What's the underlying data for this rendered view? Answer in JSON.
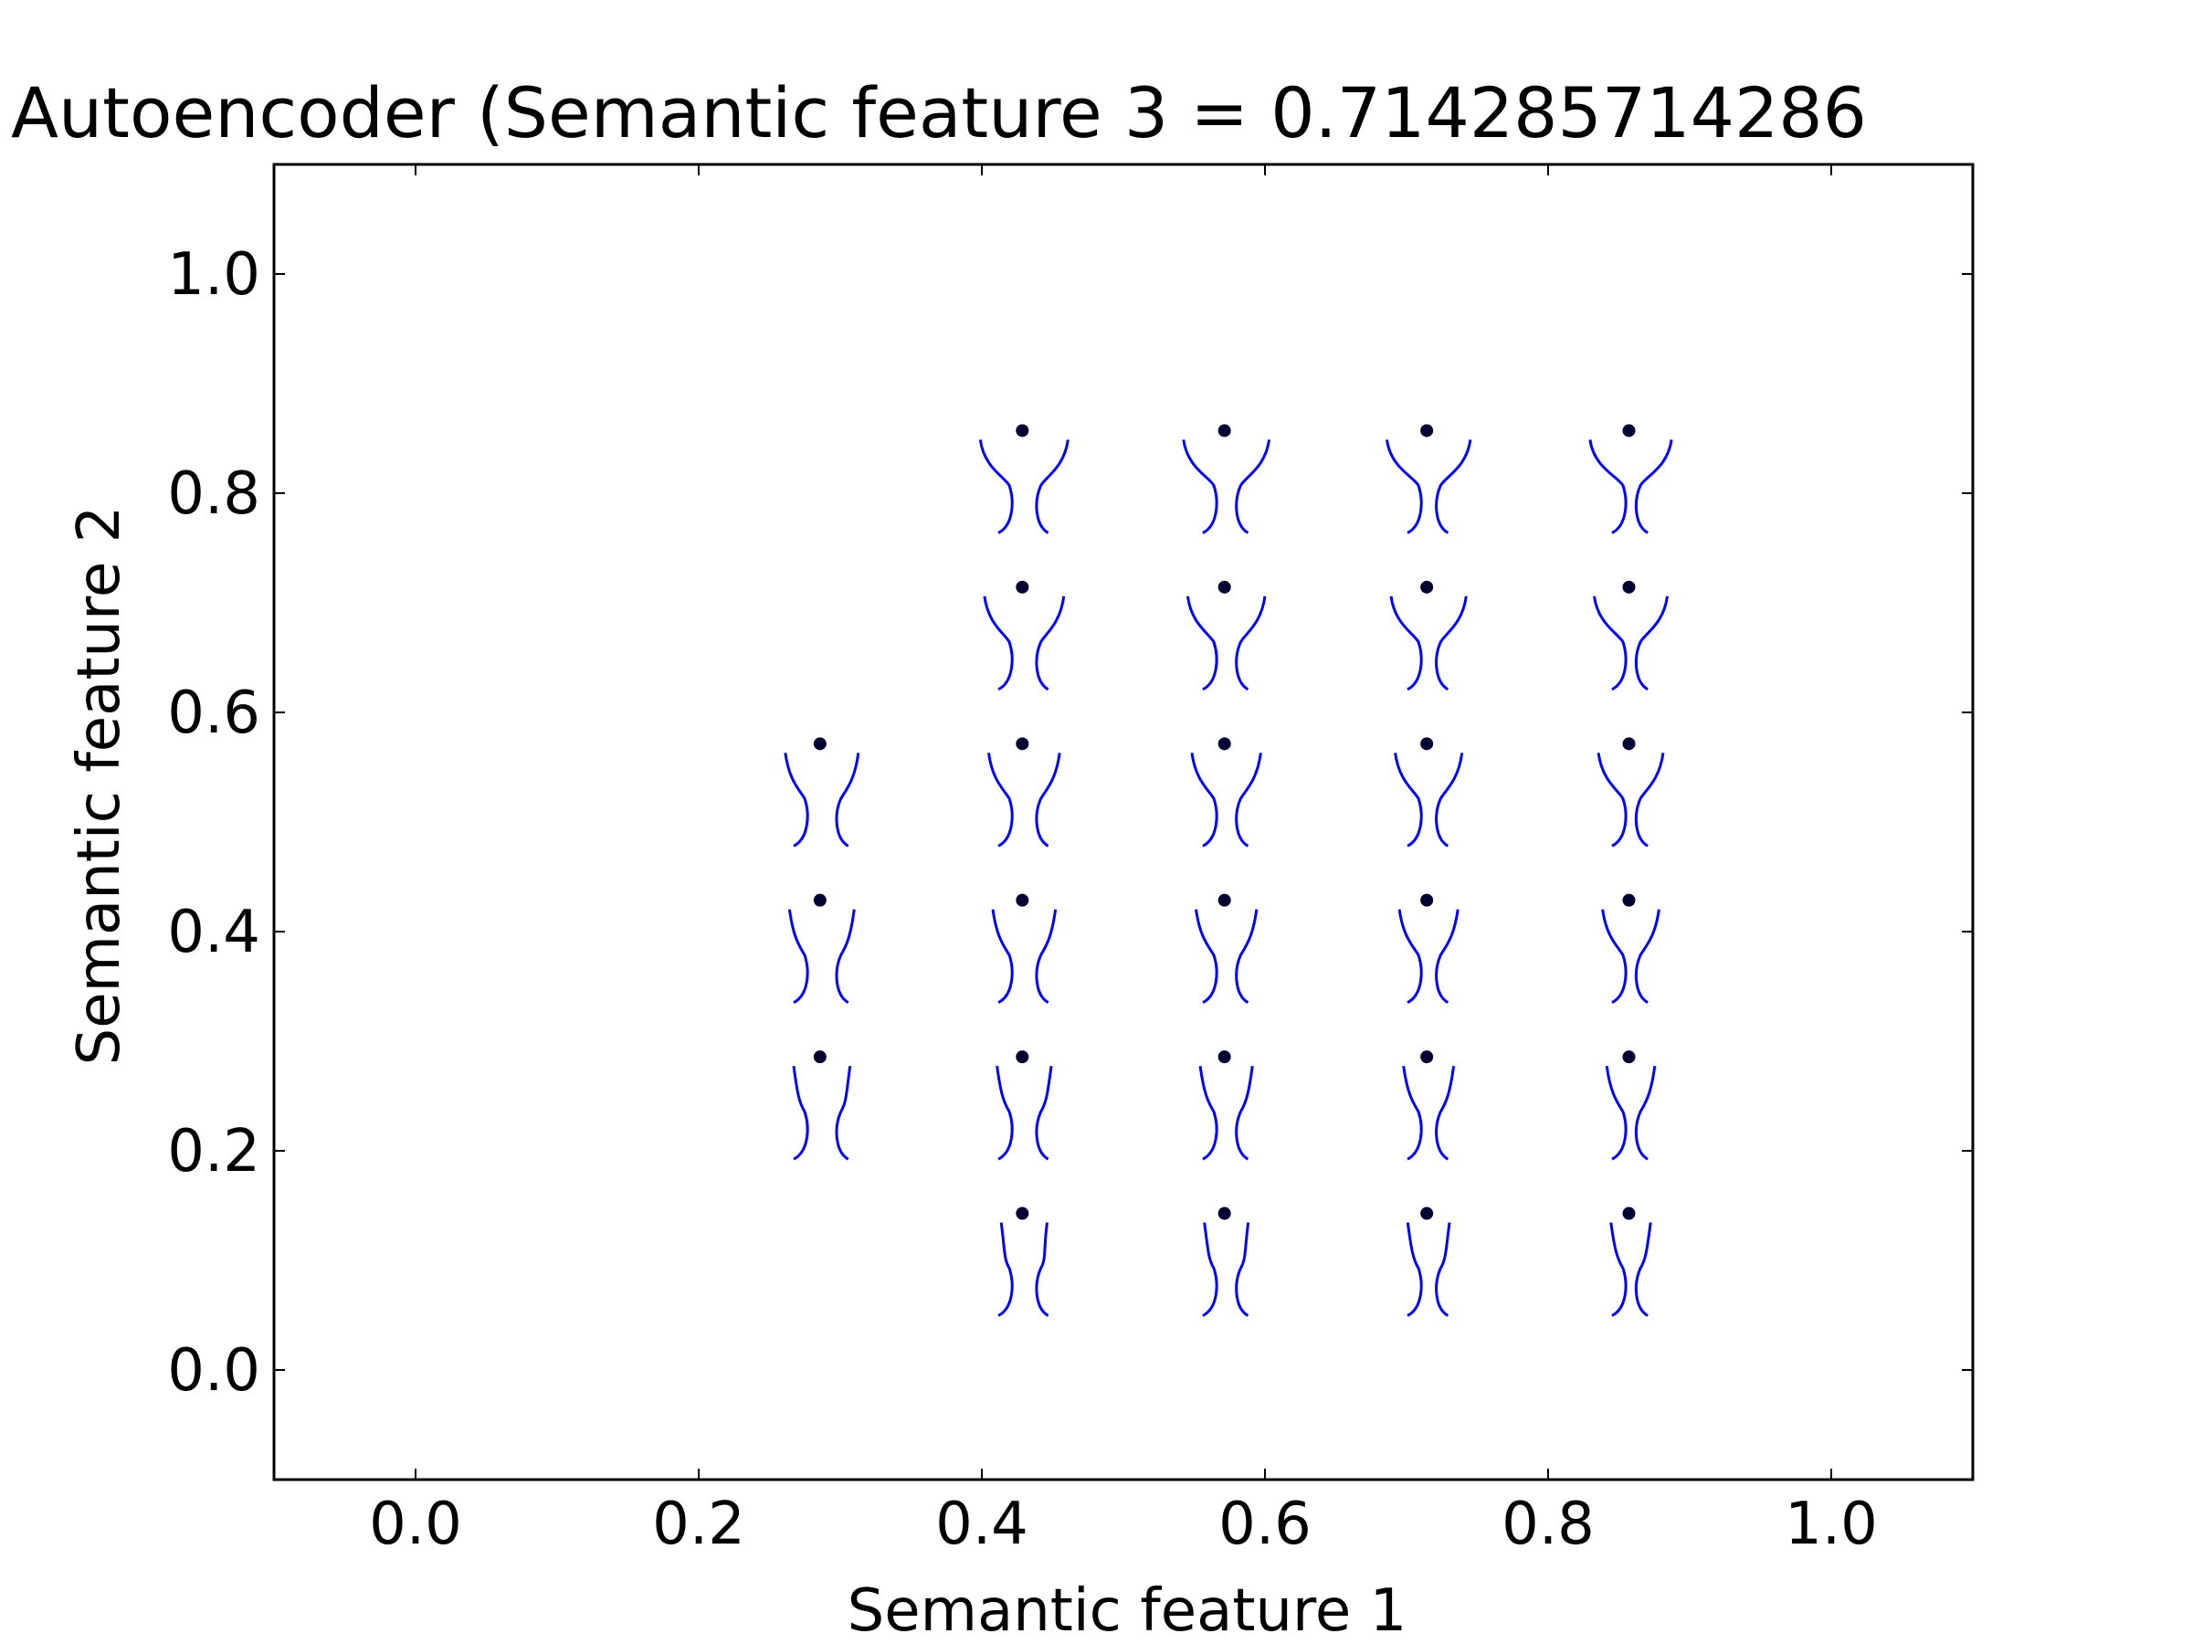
{
  "chart_data": {
    "type": "scatter",
    "title": "Autoencoder (Semantic feature 3 = 0.714285714286",
    "xlabel": "Semantic feature 1",
    "ylabel": "Semantic feature 2",
    "xlim": [
      -0.1,
      1.1
    ],
    "ylim": [
      -0.1,
      1.1
    ],
    "xticks": [
      "0.0",
      "0.2",
      "0.4",
      "0.6",
      "0.8",
      "1.0"
    ],
    "yticks": [
      "0.0",
      "0.2",
      "0.4",
      "0.6",
      "0.8",
      "1.0"
    ],
    "grid": false,
    "marker_color": "#0000ff",
    "point_color": "#000033",
    "points": [
      {
        "x": 0.2857,
        "y": 0.5714
      },
      {
        "x": 0.2857,
        "y": 0.4286
      },
      {
        "x": 0.2857,
        "y": 0.2857
      },
      {
        "x": 0.4286,
        "y": 0.8571
      },
      {
        "x": 0.4286,
        "y": 0.7143
      },
      {
        "x": 0.4286,
        "y": 0.5714
      },
      {
        "x": 0.4286,
        "y": 0.4286
      },
      {
        "x": 0.4286,
        "y": 0.2857
      },
      {
        "x": 0.4286,
        "y": 0.1429
      },
      {
        "x": 0.5714,
        "y": 0.8571
      },
      {
        "x": 0.5714,
        "y": 0.7143
      },
      {
        "x": 0.5714,
        "y": 0.5714
      },
      {
        "x": 0.5714,
        "y": 0.4286
      },
      {
        "x": 0.5714,
        "y": 0.2857
      },
      {
        "x": 0.5714,
        "y": 0.1429
      },
      {
        "x": 0.7143,
        "y": 0.8571
      },
      {
        "x": 0.7143,
        "y": 0.7143
      },
      {
        "x": 0.7143,
        "y": 0.5714
      },
      {
        "x": 0.7143,
        "y": 0.4286
      },
      {
        "x": 0.7143,
        "y": 0.2857
      },
      {
        "x": 0.7143,
        "y": 0.1429
      },
      {
        "x": 0.8571,
        "y": 0.8571
      },
      {
        "x": 0.8571,
        "y": 0.7143
      },
      {
        "x": 0.8571,
        "y": 0.5714
      },
      {
        "x": 0.8571,
        "y": 0.4286
      },
      {
        "x": 0.8571,
        "y": 0.2857
      },
      {
        "x": 0.8571,
        "y": 0.1429
      }
    ]
  }
}
